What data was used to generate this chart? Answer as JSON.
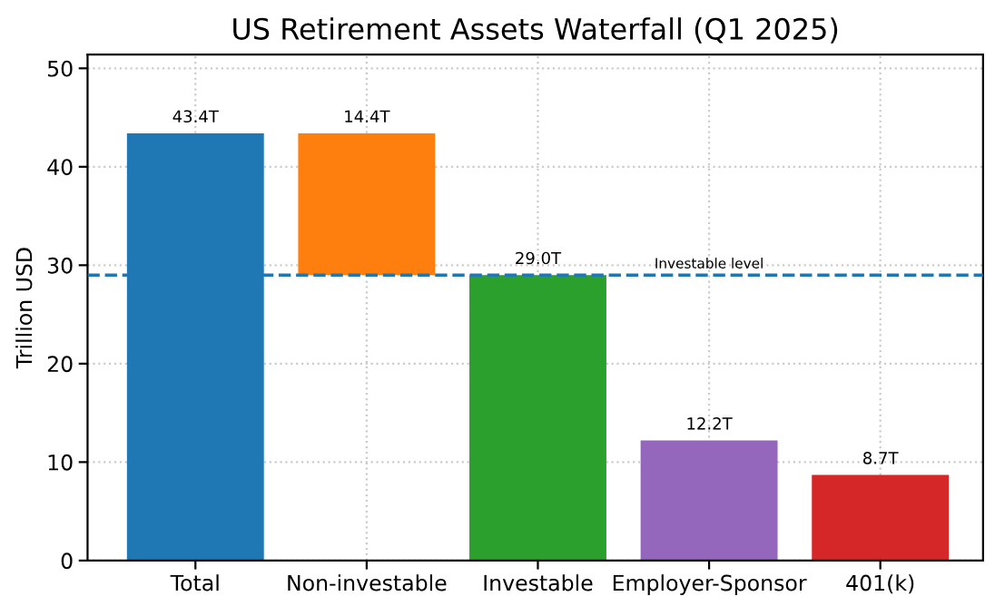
{
  "chart_data": {
    "type": "bar",
    "title": "US Retirement Assets Waterfall (Q1 2025)",
    "ylabel": "Trillion USD",
    "categories": [
      "Total",
      "Non-investable",
      "Investable",
      "Employer-Sponsor",
      "401(k)"
    ],
    "values": [
      43.4,
      14.4,
      29.0,
      12.2,
      8.7
    ],
    "base": [
      0,
      29.0,
      0,
      0,
      0
    ],
    "colors": [
      "#1f77b4",
      "#ff7f0e",
      "#2ca02c",
      "#9467bd",
      "#d62728"
    ],
    "value_labels": [
      "43.4T",
      "14.4T",
      "29.0T",
      "12.2T",
      "8.7T"
    ],
    "ylim": [
      0,
      51.4
    ],
    "yticks": [
      0,
      10,
      20,
      30,
      40,
      50
    ],
    "grid": true,
    "ref_lines": [
      {
        "axis": "y",
        "value": 29.0,
        "label": "Investable level",
        "color": "#1f77b4",
        "line_style": "dashed"
      }
    ]
  }
}
